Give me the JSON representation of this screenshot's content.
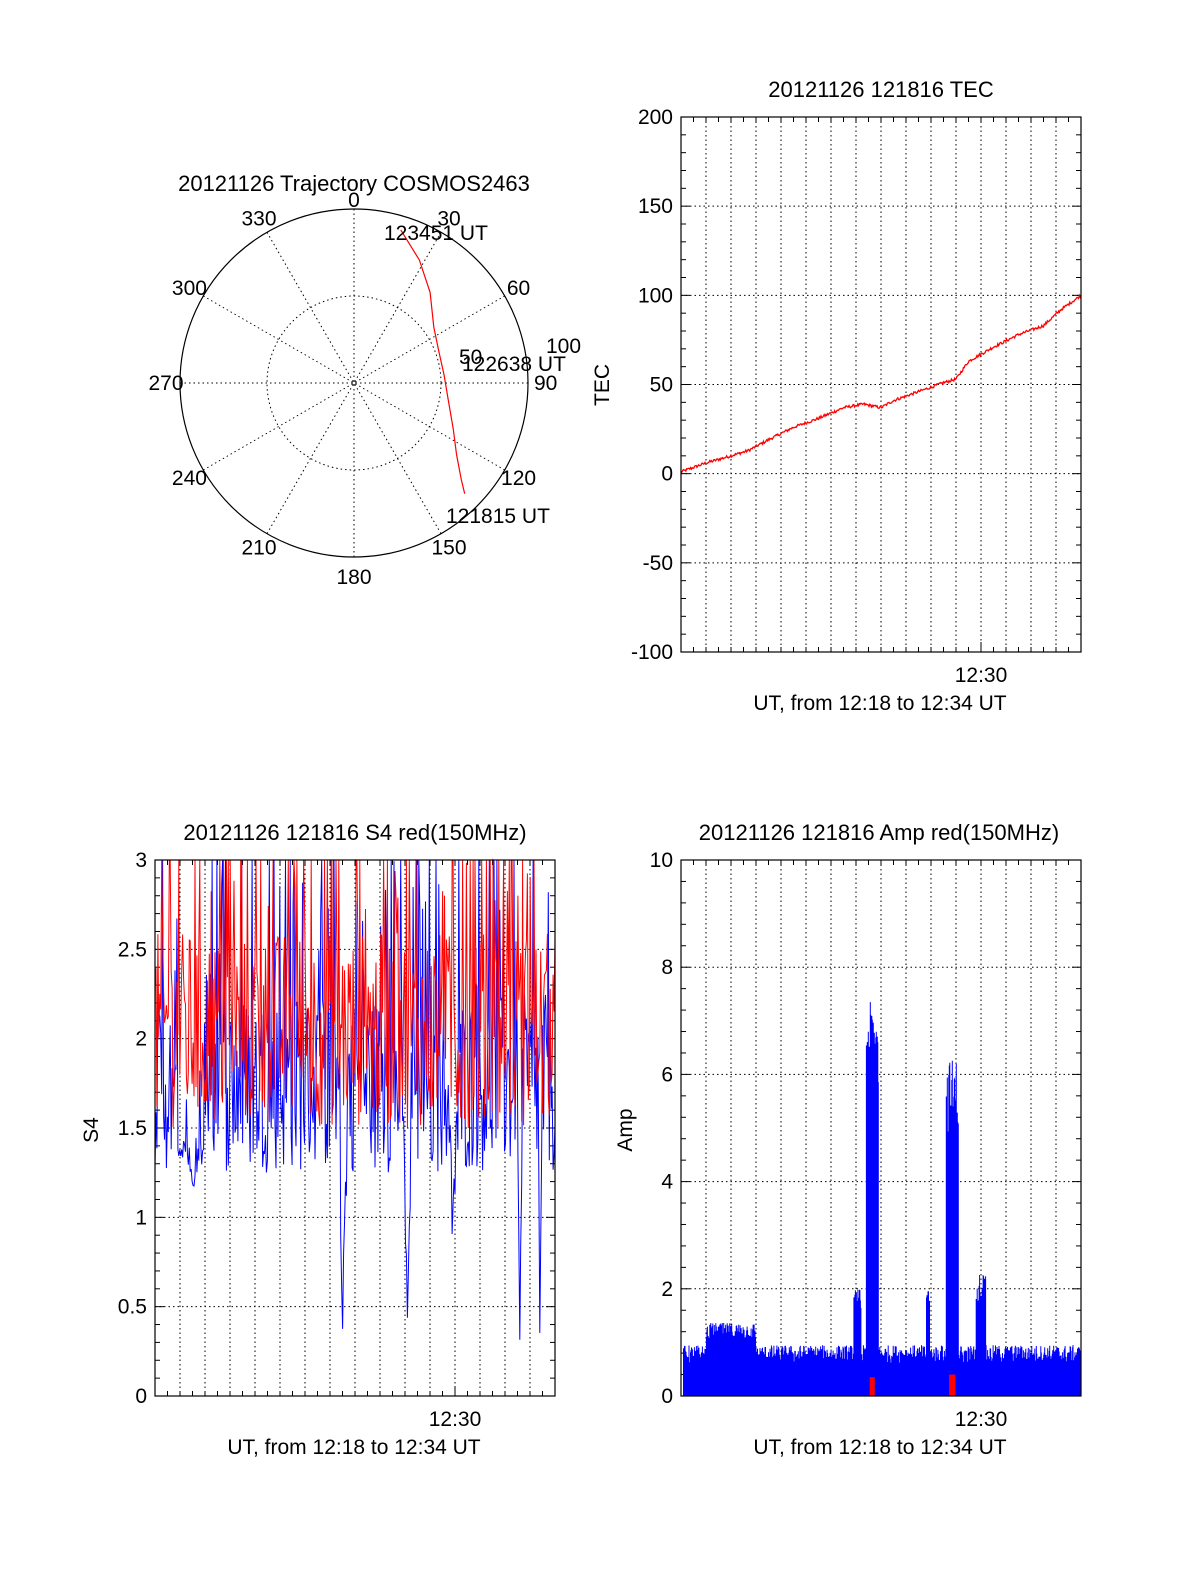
{
  "colors": {
    "red": "#ff0000",
    "blue": "#0000ff",
    "axis": "#000000"
  },
  "chart_data": [
    {
      "type": "polar",
      "id": "trajectory",
      "title": "20121126 Trajectory COSMOS2463",
      "azimuth_labels": [
        "0",
        "30",
        "60",
        "90",
        "120",
        "150",
        "180",
        "210",
        "240",
        "270",
        "300",
        "330"
      ],
      "radius_labels": [
        "50",
        "100"
      ],
      "r_max": 100,
      "trajectory": {
        "color": "red",
        "points": [
          {
            "az": 17,
            "r": 92
          },
          {
            "az": 28,
            "r": 80
          },
          {
            "az": 40,
            "r": 68
          },
          {
            "az": 55,
            "r": 56
          },
          {
            "az": 70,
            "r": 52
          },
          {
            "az": 85,
            "r": 52
          },
          {
            "az": 100,
            "r": 55
          },
          {
            "az": 115,
            "r": 63
          },
          {
            "az": 125,
            "r": 72
          },
          {
            "az": 132,
            "r": 83
          },
          {
            "az": 135,
            "r": 90
          }
        ],
        "labels": [
          {
            "text": "123451 UT",
            "az": 17,
            "r": 92
          },
          {
            "text": "122638 UT",
            "az": 78,
            "r": 52
          },
          {
            "text": "121815 UT",
            "az": 135,
            "r": 90
          }
        ]
      }
    },
    {
      "type": "line",
      "id": "tec",
      "title": "20121126 121816 TEC",
      "ylabel": "TEC",
      "xlabel": "UT, from 12:18 to 12:34 UT",
      "xtick_label": "12:30",
      "xtick_value": 12.0,
      "xlim": [
        0,
        16
      ],
      "ylim": [
        -100,
        200
      ],
      "yticks": [
        -100,
        -50,
        0,
        50,
        100,
        150,
        200
      ],
      "grid": true,
      "series": [
        {
          "color": "red",
          "x": [
            0,
            1,
            2,
            2.7,
            3.5,
            4.5,
            5.5,
            6.5,
            7.3,
            8.0,
            8.5,
            9.5,
            10.5,
            11.0,
            11.5,
            12.5,
            13.5,
            14.5,
            15.2,
            16.0
          ],
          "y": [
            1,
            6,
            10,
            13,
            19,
            26,
            31,
            37,
            39,
            37,
            41,
            46,
            51,
            53,
            63,
            71,
            78,
            83,
            92,
            100
          ]
        }
      ]
    },
    {
      "type": "line",
      "id": "s4",
      "title": "20121126 121816 S4 red(150MHz)",
      "ylabel": "S4",
      "xlabel": "UT, from 12:18 to 12:34 UT",
      "xtick_label": "12:30",
      "xtick_value": 12.0,
      "xlim": [
        0,
        16
      ],
      "ylim": [
        0,
        3
      ],
      "yticks": [
        0,
        0.5,
        1,
        1.5,
        2,
        2.5,
        3
      ],
      "ytick_labels": [
        "0",
        "0.5",
        "1",
        "1.5",
        "2",
        "2.5",
        "3"
      ],
      "grid": true,
      "series": [
        {
          "color": "red",
          "mean": 2.05,
          "spread": 0.55,
          "n": 420
        },
        {
          "color": "blue",
          "mean": 1.75,
          "spread": 0.5,
          "n": 420,
          "dips": [
            {
              "x": 1.5,
              "width": 1.8,
              "y": 1.05
            },
            {
              "x": 7.5,
              "width": 0.4,
              "y": 0.32
            },
            {
              "x": 10.1,
              "width": 0.35,
              "y": 0.3
            },
            {
              "x": 11.9,
              "width": 0.5,
              "y": 0.85
            },
            {
              "x": 14.6,
              "width": 0.15,
              "y": 0.02
            },
            {
              "x": 15.4,
              "width": 0.15,
              "y": 0.02
            }
          ]
        }
      ]
    },
    {
      "type": "line",
      "id": "amp",
      "title": "20121126 121816 Amp red(150MHz)",
      "ylabel": "Amp",
      "xlabel": "UT, from 12:18 to 12:34 UT",
      "xtick_label": "12:30",
      "xtick_value": 12.0,
      "xlim": [
        0,
        16
      ],
      "ylim": [
        0,
        10
      ],
      "yticks": [
        0,
        2,
        4,
        6,
        8,
        10
      ],
      "grid": true,
      "series": [
        {
          "color": "blue",
          "baseline": 0.6,
          "noise": 0.35,
          "n": 800,
          "features": [
            {
              "from": 1.0,
              "to": 3.0,
              "level": 1.3
            },
            {
              "from": 6.9,
              "to": 7.2,
              "level": 1.9
            },
            {
              "from": 7.4,
              "to": 7.9,
              "level": 7.0
            },
            {
              "from": 9.8,
              "to": 9.95,
              "level": 2.1
            },
            {
              "from": 10.6,
              "to": 11.1,
              "level": 6.0
            },
            {
              "from": 11.8,
              "to": 12.2,
              "level": 2.2
            }
          ]
        },
        {
          "color": "red",
          "spikes": [
            {
              "x": 7.65,
              "width": 0.2,
              "y": 0.35
            },
            {
              "x": 10.85,
              "width": 0.25,
              "y": 0.4
            }
          ]
        }
      ]
    }
  ]
}
